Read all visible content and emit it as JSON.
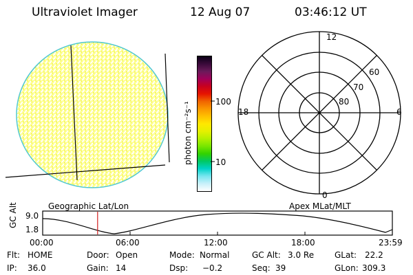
{
  "header": {
    "title": "Ultraviolet Imager",
    "date": "12 Aug 07",
    "time": "03:46:12 UT"
  },
  "colorbar": {
    "unit_label": "photon cm⁻²s⁻¹",
    "ticks": [
      "100",
      "10"
    ],
    "colors": [
      "#0a0016",
      "#3a0a3a",
      "#6a1a5a",
      "#a0005a",
      "#c8001e",
      "#e61400",
      "#f06400",
      "#fa9600",
      "#ffc000",
      "#ffe800",
      "#e6f000",
      "#b4f000",
      "#78e600",
      "#32d200",
      "#00c864",
      "#00d2c8",
      "#78e6f0",
      "#c8f0fa",
      "#ffffff"
    ]
  },
  "polar_plot": {
    "mlt_labels": {
      "top": "12",
      "left": "18",
      "right": "6",
      "bottom": "0"
    },
    "lat_labels": [
      "60",
      "70",
      "80"
    ],
    "caption": "Apex MLat/MLT"
  },
  "geo_plot": {
    "caption": "Geographic Lat/Lon",
    "colors": {
      "fill": "#ffff96",
      "edge": "#50c8d2"
    }
  },
  "timeline": {
    "ylabel": "GC Alt",
    "ytick_top": "9.0",
    "ytick_bottom": "1.8",
    "xticks": [
      "00:00",
      "06:00",
      "12:00",
      "18:00",
      "23:59"
    ],
    "marker_time": "03:46",
    "marker_color": "#d21e1e"
  },
  "status": {
    "flt_label": "Flt:",
    "flt_value": "HOME",
    "ip_label": "IP:",
    "ip_value": "36.0",
    "door_label": "Door:",
    "door_value": "Open",
    "gain_label": "Gain:",
    "gain_value": "14",
    "mode_label": "Mode:",
    "mode_value": "Normal",
    "dsp_label": "Dsp:",
    "dsp_value": "−0.2",
    "gcalt_label": "GC Alt:",
    "gcalt_value": "3.0 Re",
    "seq_label": "Seq:",
    "seq_value": "39",
    "glat_label": "GLat:",
    "glat_value": "22.2",
    "glon_label": "GLon:",
    "glon_value": "309.3"
  }
}
